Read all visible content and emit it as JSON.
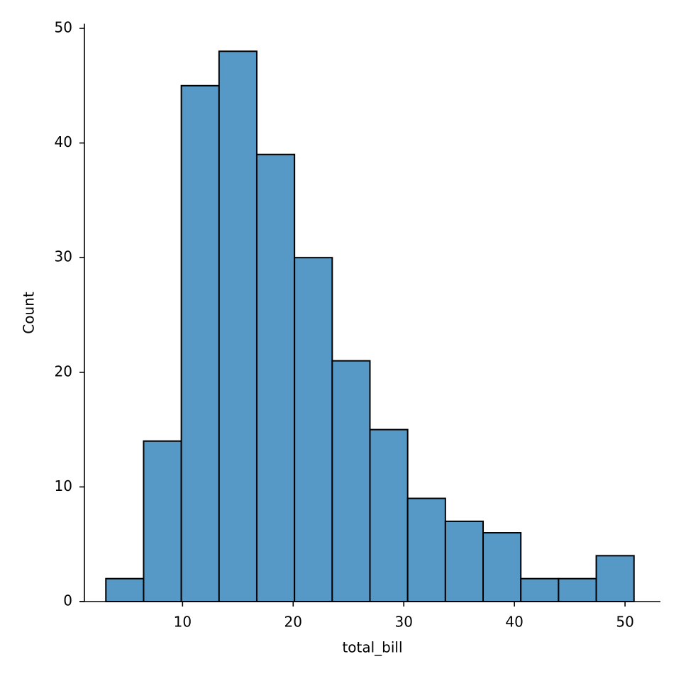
{
  "chart_data": {
    "type": "histogram",
    "x_label": "total_bill",
    "y_label": "Count",
    "bins": [
      3.07,
      6.48,
      9.89,
      13.3,
      16.71,
      20.12,
      23.53,
      26.94,
      30.35,
      33.76,
      37.17,
      40.58,
      43.99,
      47.4,
      50.81
    ],
    "values": [
      2,
      14,
      45,
      48,
      39,
      30,
      21,
      15,
      9,
      7,
      6,
      2,
      2,
      4
    ],
    "color": "#5799c6",
    "edgecolor": "#000000",
    "xlim": [
      0.68,
      53.2
    ],
    "xticks": [
      10,
      20,
      30,
      40,
      50
    ],
    "ylim": [
      0,
      50.4
    ],
    "yticks": [
      0,
      10,
      20,
      30,
      40,
      50
    ],
    "grid": false
  }
}
